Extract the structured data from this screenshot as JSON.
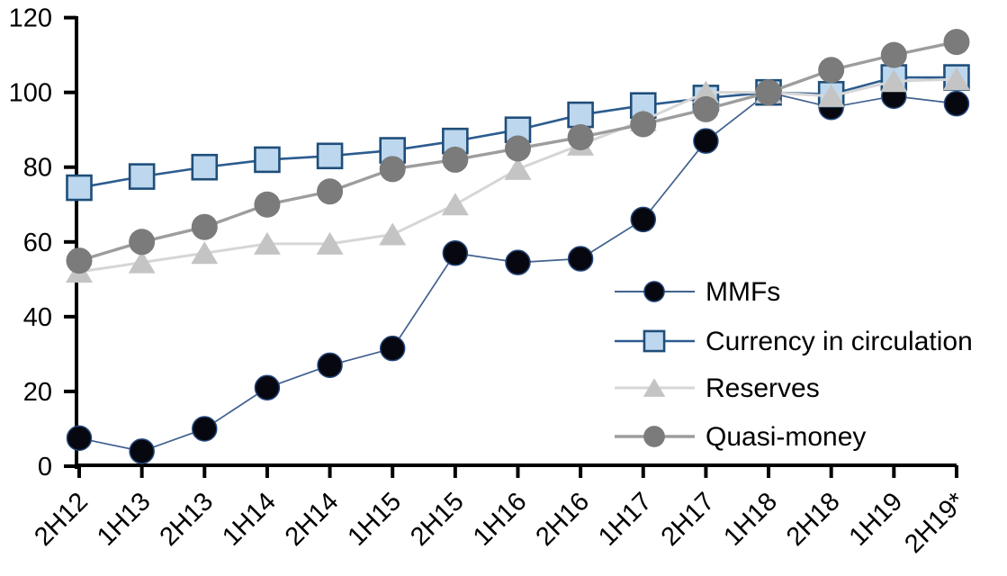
{
  "chart_data": {
    "type": "line",
    "title": "",
    "xlabel": "",
    "ylabel": "",
    "grid": false,
    "background_color": "#ffffff",
    "axis_color": "#000000",
    "ylim": [
      0,
      120
    ],
    "yticks": [
      0,
      20,
      40,
      60,
      80,
      100,
      120
    ],
    "legend_position": "inside-right",
    "categories": [
      "2H12",
      "1H13",
      "2H13",
      "1H14",
      "2H14",
      "1H15",
      "2H15",
      "1H16",
      "2H16",
      "1H17",
      "2H17",
      "1H18",
      "2H18",
      "1H19",
      "2H19*"
    ],
    "series": [
      {
        "name": "MMFs",
        "marker": "filled-circle",
        "line_color": "#41618f",
        "line_width": 1.7,
        "marker_fill": "#07070f",
        "marker_stroke": "#24477c",
        "marker_stroke_width": 1.5,
        "marker_size": 13.5,
        "values": [
          7.5,
          4,
          10,
          21,
          27,
          31.5,
          57,
          54.5,
          55.5,
          66,
          87,
          100,
          96,
          99,
          97
        ]
      },
      {
        "name": "Currency in circulation",
        "marker": "filled-square",
        "line_color": "#2c5c8f",
        "line_width": 2.6,
        "marker_fill": "#bdd7ee",
        "marker_stroke": "#1f4e79",
        "marker_stroke_width": 2.6,
        "marker_size": 13.5,
        "values": [
          74.5,
          77.5,
          80,
          82,
          83,
          84.5,
          87,
          90,
          94,
          96.5,
          98.5,
          100,
          99.5,
          104,
          104
        ]
      },
      {
        "name": "Reserves",
        "marker": "filled-triangle",
        "line_color": "#d6d6d6",
        "line_width": 3,
        "marker_fill": "#c4c4c4",
        "marker_stroke": "none",
        "marker_stroke_width": 0,
        "marker_size": 15,
        "values": [
          52,
          54.5,
          57,
          59.5,
          59.5,
          62,
          70,
          79.5,
          86,
          92.5,
          100,
          100,
          99,
          103,
          103.5
        ]
      },
      {
        "name": "Quasi-money",
        "marker": "filled-circle",
        "line_color": "#9d9d9d",
        "line_width": 3.4,
        "marker_fill": "#7b7b7b",
        "marker_stroke": "none",
        "marker_stroke_width": 0,
        "marker_size": 14.5,
        "values": [
          55,
          60,
          64,
          70,
          73.5,
          79.5,
          82,
          85,
          88,
          91.5,
          95.5,
          100,
          106,
          110,
          113.5
        ]
      }
    ]
  }
}
